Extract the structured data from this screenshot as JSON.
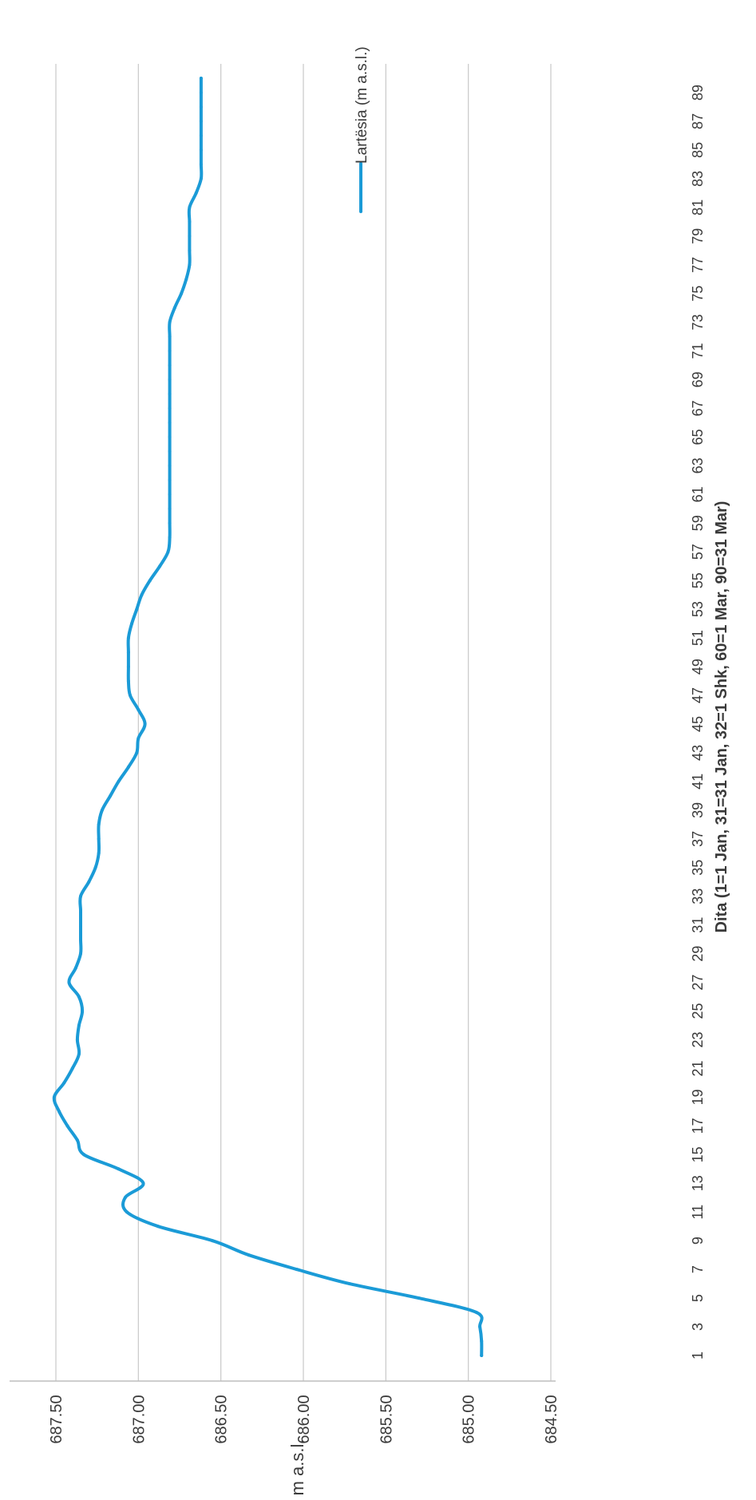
{
  "chart_data": {
    "type": "line",
    "orientation": "rotated-90-clockwise",
    "title": "",
    "xlabel": "Dita (1=1 Jan, 31=31 Jan, 32=1 Shk, 60=1 Mar, 90=31 Mar)",
    "ylabel": "m a.s.l.",
    "ylim": [
      684.5,
      687.5
    ],
    "xlim": [
      1,
      90
    ],
    "yticks": [
      "684.50",
      "685.00",
      "685.50",
      "686.00",
      "686.50",
      "687.00",
      "687.50"
    ],
    "xticks": [
      "1",
      "3",
      "5",
      "7",
      "9",
      "11",
      "13",
      "15",
      "17",
      "19",
      "21",
      "23",
      "25",
      "27",
      "29",
      "31",
      "33",
      "35",
      "37",
      "39",
      "41",
      "43",
      "45",
      "47",
      "49",
      "51",
      "53",
      "55",
      "57",
      "59",
      "61",
      "63",
      "65",
      "67",
      "69",
      "71",
      "73",
      "75",
      "77",
      "79",
      "81",
      "83",
      "85",
      "87",
      "89"
    ],
    "grid": "horizontal",
    "legend_position": "right",
    "series": [
      {
        "name": "Lartësia (m a.s.l.)",
        "color": "#1B9BD7",
        "x": [
          1,
          2,
          3,
          4,
          5,
          6,
          7,
          8,
          9,
          10,
          11,
          12,
          13,
          14,
          15,
          16,
          17,
          18,
          19,
          20,
          21,
          22,
          23,
          24,
          25,
          26,
          27,
          28,
          29,
          30,
          31,
          32,
          33,
          34,
          35,
          36,
          37,
          38,
          39,
          40,
          41,
          42,
          43,
          44,
          45,
          46,
          47,
          48,
          49,
          50,
          51,
          52,
          53,
          54,
          55,
          56,
          57,
          58,
          59,
          60,
          61,
          62,
          63,
          64,
          65,
          66,
          67,
          68,
          69,
          70,
          71,
          72,
          73,
          74,
          75,
          76,
          77,
          78,
          79,
          80,
          81,
          82,
          83,
          84,
          85,
          86,
          87,
          88,
          89,
          90
        ],
        "values": [
          684.92,
          684.92,
          684.93,
          684.95,
          685.3,
          685.72,
          686.04,
          686.33,
          686.55,
          686.88,
          687.07,
          687.08,
          686.97,
          687.12,
          687.33,
          687.37,
          687.43,
          687.48,
          687.51,
          687.45,
          687.4,
          687.36,
          687.37,
          687.36,
          687.34,
          687.36,
          687.42,
          687.38,
          687.35,
          687.35,
          687.35,
          687.35,
          687.35,
          687.3,
          687.26,
          687.24,
          687.24,
          687.24,
          687.22,
          687.17,
          687.12,
          687.06,
          687.01,
          687.0,
          686.96,
          687.0,
          687.05,
          687.06,
          687.06,
          687.06,
          687.06,
          687.04,
          687.01,
          686.98,
          686.93,
          686.87,
          686.82,
          686.81,
          686.81,
          686.81,
          686.81,
          686.81,
          686.81,
          686.81,
          686.81,
          686.81,
          686.81,
          686.81,
          686.81,
          686.81,
          686.81,
          686.81,
          686.81,
          686.78,
          686.74,
          686.71,
          686.69,
          686.69,
          686.69,
          686.69,
          686.69,
          686.65,
          686.62,
          686.62,
          686.62,
          686.62,
          686.62,
          686.62,
          686.62,
          686.62
        ]
      }
    ]
  }
}
